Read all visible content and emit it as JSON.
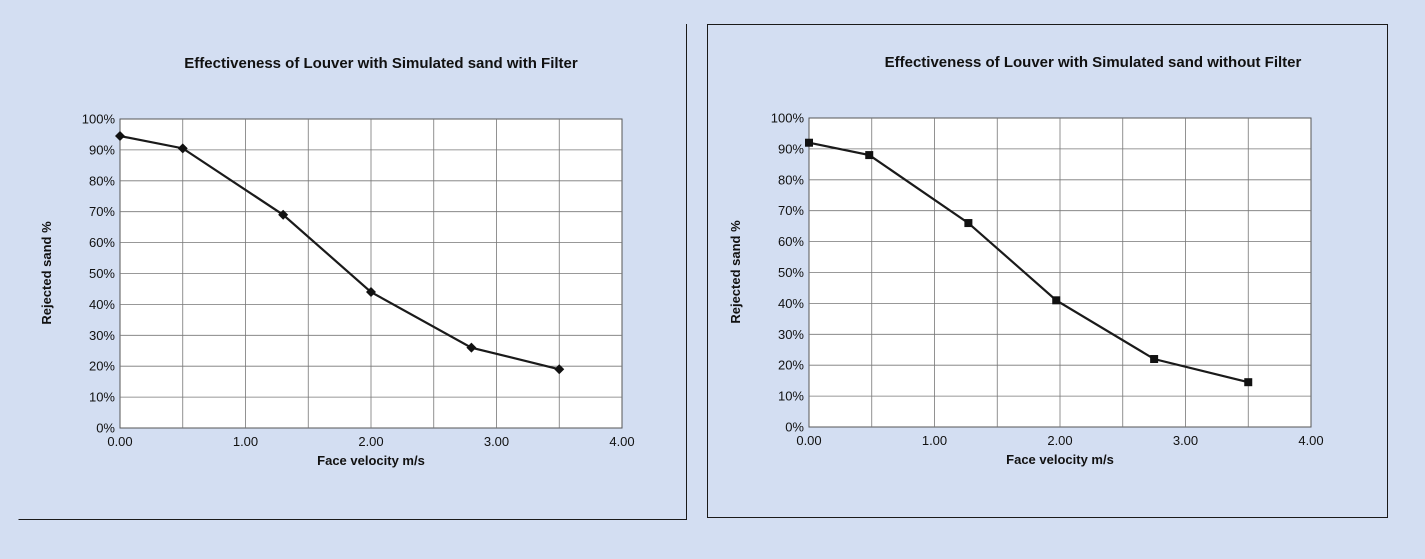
{
  "chart_data": [
    {
      "type": "line",
      "title": "Effectiveness of Louver with Simulated sand with Filter",
      "xlabel": "Face velocity m/s",
      "ylabel": "Rejected sand %",
      "xlim": [
        0,
        4
      ],
      "ylim": [
        0,
        100
      ],
      "x_ticks": [
        "0.00",
        "1.00",
        "2.00",
        "3.00",
        "4.00"
      ],
      "y_ticks": [
        "0%",
        "10%",
        "20%",
        "30%",
        "40%",
        "50%",
        "60%",
        "70%",
        "80%",
        "90%",
        "100%"
      ],
      "grid": true,
      "marker": "diamond",
      "series": [
        {
          "x": [
            0.0,
            0.5,
            1.3,
            2.0,
            2.8,
            3.5
          ],
          "y": [
            94.5,
            90.5,
            69,
            44,
            26,
            19
          ]
        }
      ]
    },
    {
      "type": "line",
      "title": "Effectiveness of Louver with Simulated sand without Filter",
      "xlabel": "Face velocity m/s",
      "ylabel": "Rejected sand %",
      "xlim": [
        0,
        4
      ],
      "ylim": [
        0,
        100
      ],
      "x_ticks": [
        "0.00",
        "1.00",
        "2.00",
        "3.00",
        "4.00"
      ],
      "y_ticks": [
        "0%",
        "10%",
        "20%",
        "30%",
        "40%",
        "50%",
        "60%",
        "70%",
        "80%",
        "90%",
        "100%"
      ],
      "grid": true,
      "marker": "square",
      "series": [
        {
          "x": [
            0.0,
            0.48,
            1.27,
            1.97,
            2.75,
            3.5
          ],
          "y": [
            92,
            88,
            66,
            41,
            22,
            14.5
          ]
        }
      ]
    }
  ]
}
